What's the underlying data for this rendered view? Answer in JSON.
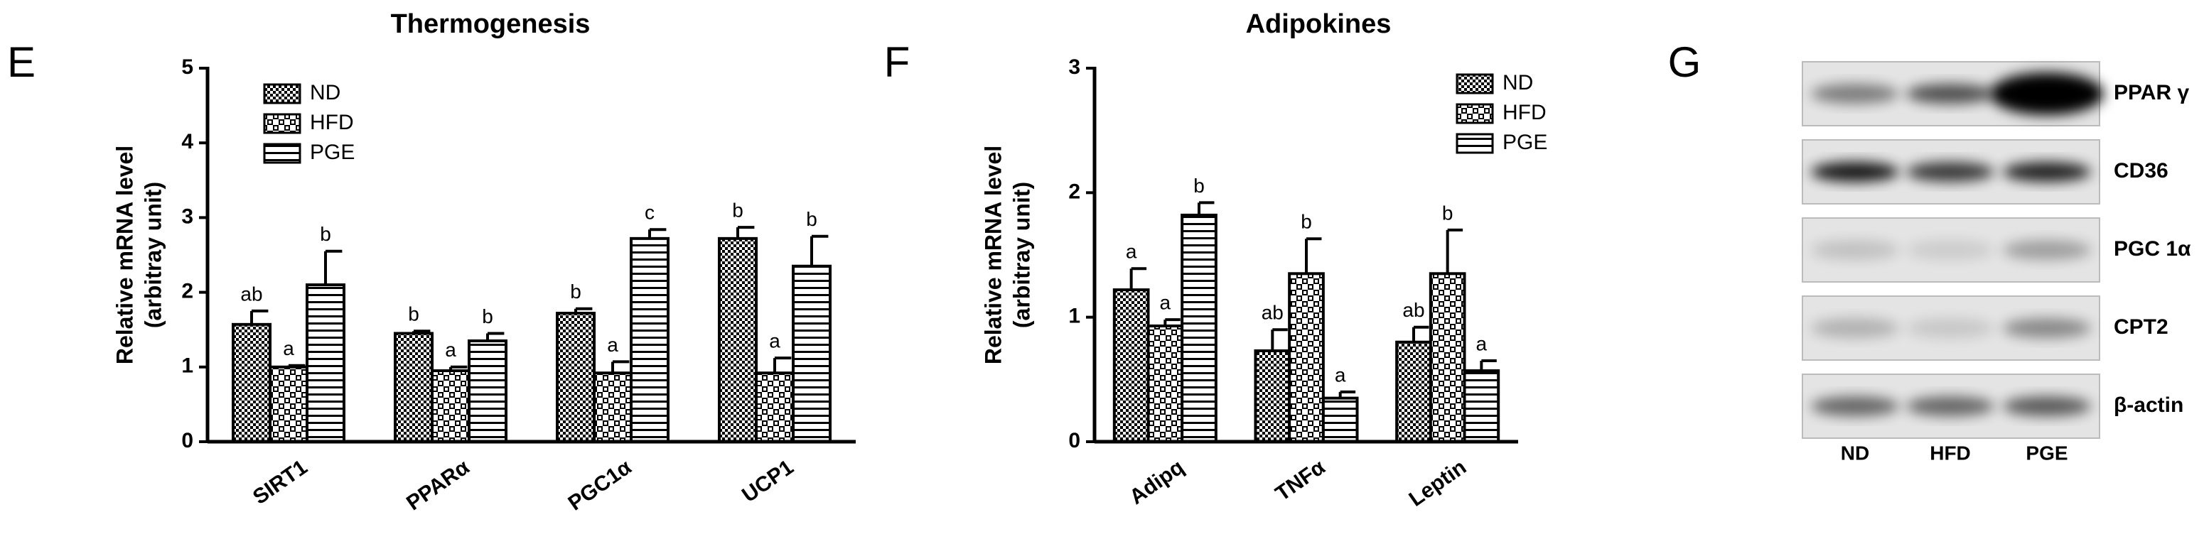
{
  "chart_data": [
    {
      "type": "bar",
      "panel": "E",
      "title": "Thermogenesis",
      "y_label": [
        "Relative mRNA level",
        "(arbitray unit)"
      ],
      "categories": [
        "SIRT1",
        "PPARα",
        "PGC1α",
        "UCP1"
      ],
      "series": [
        {
          "name": "ND",
          "color": "#000000",
          "pattern": "dense",
          "values": [
            1.57,
            1.45,
            1.72,
            2.72
          ],
          "errors": [
            0.18,
            0.03,
            0.06,
            0.15
          ],
          "sig_labels": [
            "ab",
            "b",
            "b",
            "b"
          ]
        },
        {
          "name": "HFD",
          "color": "#000000",
          "pattern": "coarse",
          "values": [
            1.0,
            0.95,
            0.92,
            0.92
          ],
          "errors": [
            0.02,
            0.05,
            0.15,
            0.2
          ],
          "sig_labels": [
            "a",
            "a",
            "a",
            "a"
          ]
        },
        {
          "name": "PGE",
          "color": "#000000",
          "pattern": "stripe",
          "values": [
            2.1,
            1.35,
            2.72,
            2.35
          ],
          "errors": [
            0.45,
            0.1,
            0.12,
            0.4
          ],
          "sig_labels": [
            "b",
            "b",
            "c",
            "b"
          ]
        }
      ],
      "ylim": [
        0,
        5
      ],
      "yticks": [
        0,
        1,
        2,
        3,
        4,
        5
      ],
      "grid": false,
      "legend": "top-left"
    },
    {
      "type": "bar",
      "panel": "F",
      "title": "Adipokines",
      "y_label": [
        "Relative mRNA level",
        "(arbitray unit)"
      ],
      "categories": [
        "Adipq",
        "TNFα",
        "Leptin"
      ],
      "series": [
        {
          "name": "ND",
          "color": "#000000",
          "pattern": "dense",
          "values": [
            1.22,
            0.73,
            0.8
          ],
          "errors": [
            0.17,
            0.17,
            0.12
          ],
          "sig_labels": [
            "a",
            "ab",
            "ab"
          ]
        },
        {
          "name": "HFD",
          "color": "#000000",
          "pattern": "coarse",
          "values": [
            0.93,
            1.35,
            1.35
          ],
          "errors": [
            0.05,
            0.28,
            0.35
          ],
          "sig_labels": [
            "a",
            "b",
            "b"
          ]
        },
        {
          "name": "PGE",
          "color": "#000000",
          "pattern": "stripe",
          "values": [
            1.82,
            0.35,
            0.57
          ],
          "errors": [
            0.1,
            0.05,
            0.08
          ],
          "sig_labels": [
            "b",
            "a",
            "a"
          ]
        }
      ],
      "ylim": [
        0,
        3
      ],
      "yticks": [
        0,
        1,
        2,
        3
      ],
      "grid": false,
      "legend": "top-right"
    }
  ],
  "blot": {
    "panel": "G",
    "rows": [
      "PPAR γ",
      "CD36",
      "PGC 1α",
      "CPT2",
      "β-actin"
    ],
    "lanes": [
      "ND",
      "HFD",
      "PGE"
    ]
  }
}
